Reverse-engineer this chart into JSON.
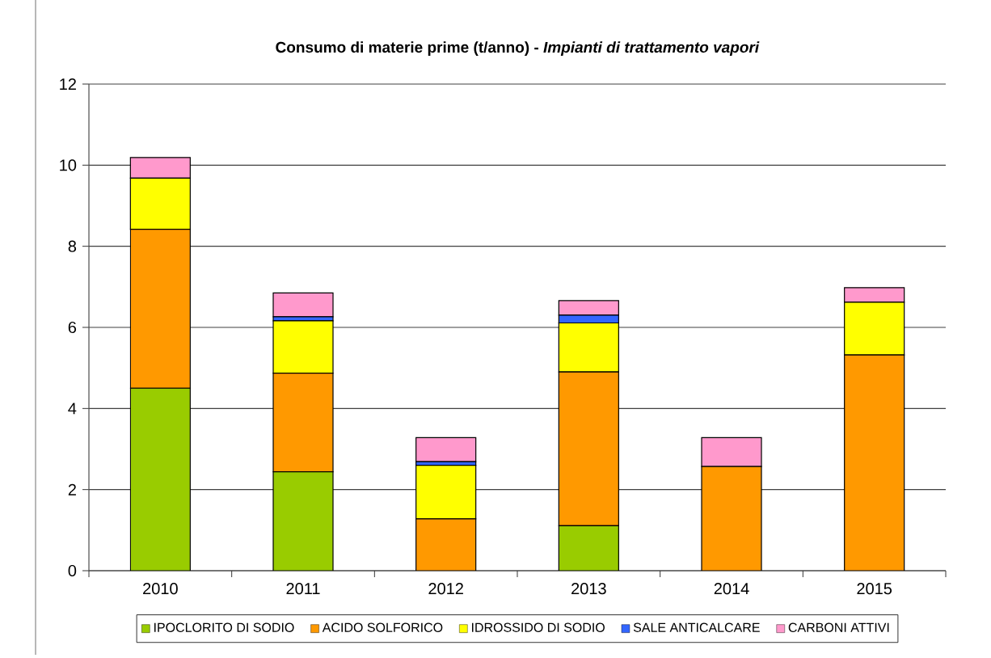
{
  "chart_data": {
    "type": "bar",
    "stacked": true,
    "title": "Consumo di materie prime (t/anno) - *Impianti di trattamento vapori*",
    "categories": [
      "2010",
      "2011",
      "2012",
      "2013",
      "2014",
      "2015"
    ],
    "series": [
      {
        "name": "IPOCLORITO DI SODIO",
        "color": "#99cc00",
        "values": [
          4.5,
          2.44,
          null,
          1.11,
          null,
          null
        ]
      },
      {
        "name": "ACIDO SOLFORICO",
        "color": "#ff9900",
        "values": [
          3.92,
          2.43,
          1.28,
          3.79,
          2.57,
          5.32
        ]
      },
      {
        "name": "IDROSSIDO DI SODIO",
        "color": "#ffff00",
        "values": [
          1.26,
          1.29,
          1.32,
          1.21,
          null,
          1.3
        ]
      },
      {
        "name": "SALE ANTICALCARE",
        "color": "#3366ff",
        "values": [
          null,
          0.1,
          0.09,
          0.19,
          null,
          null
        ]
      },
      {
        "name": "CARBONI ATTIVI",
        "color": "#ff99cc",
        "values": [
          0.51,
          0.59,
          0.59,
          0.36,
          0.71,
          0.36
        ]
      }
    ],
    "ylim": [
      0,
      12
    ],
    "yticks": [
      0,
      2,
      4,
      6,
      8,
      10,
      12
    ],
    "grid": "y",
    "legend": "bottom"
  }
}
